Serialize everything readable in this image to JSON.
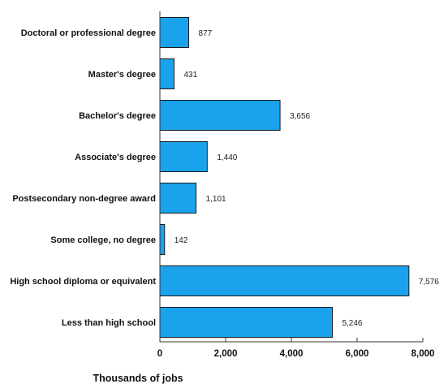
{
  "chart_data": {
    "type": "bar",
    "orientation": "horizontal",
    "categories": [
      "Doctoral or professional degree",
      "Master's degree",
      "Bachelor's degree",
      "Associate's degree",
      "Postsecondary non-degree award",
      "Some college, no degree",
      "High school diploma or equivalent",
      "Less than high school"
    ],
    "values": [
      877,
      431,
      3656,
      1440,
      1101,
      142,
      7576,
      5246
    ],
    "value_labels": [
      "877",
      "431",
      "3,656",
      "1,440",
      "1,101",
      "142",
      "7,576",
      "5,246"
    ],
    "xlabel": "Thousands of jobs",
    "xlim": [
      0,
      8000
    ],
    "xticks": [
      0,
      2000,
      4000,
      6000,
      8000
    ],
    "xtick_labels": [
      "0",
      "2,000",
      "4,000",
      "6,000",
      "8,000"
    ],
    "bar_color": "#1aa3ec",
    "grid": false,
    "legend": "none"
  }
}
